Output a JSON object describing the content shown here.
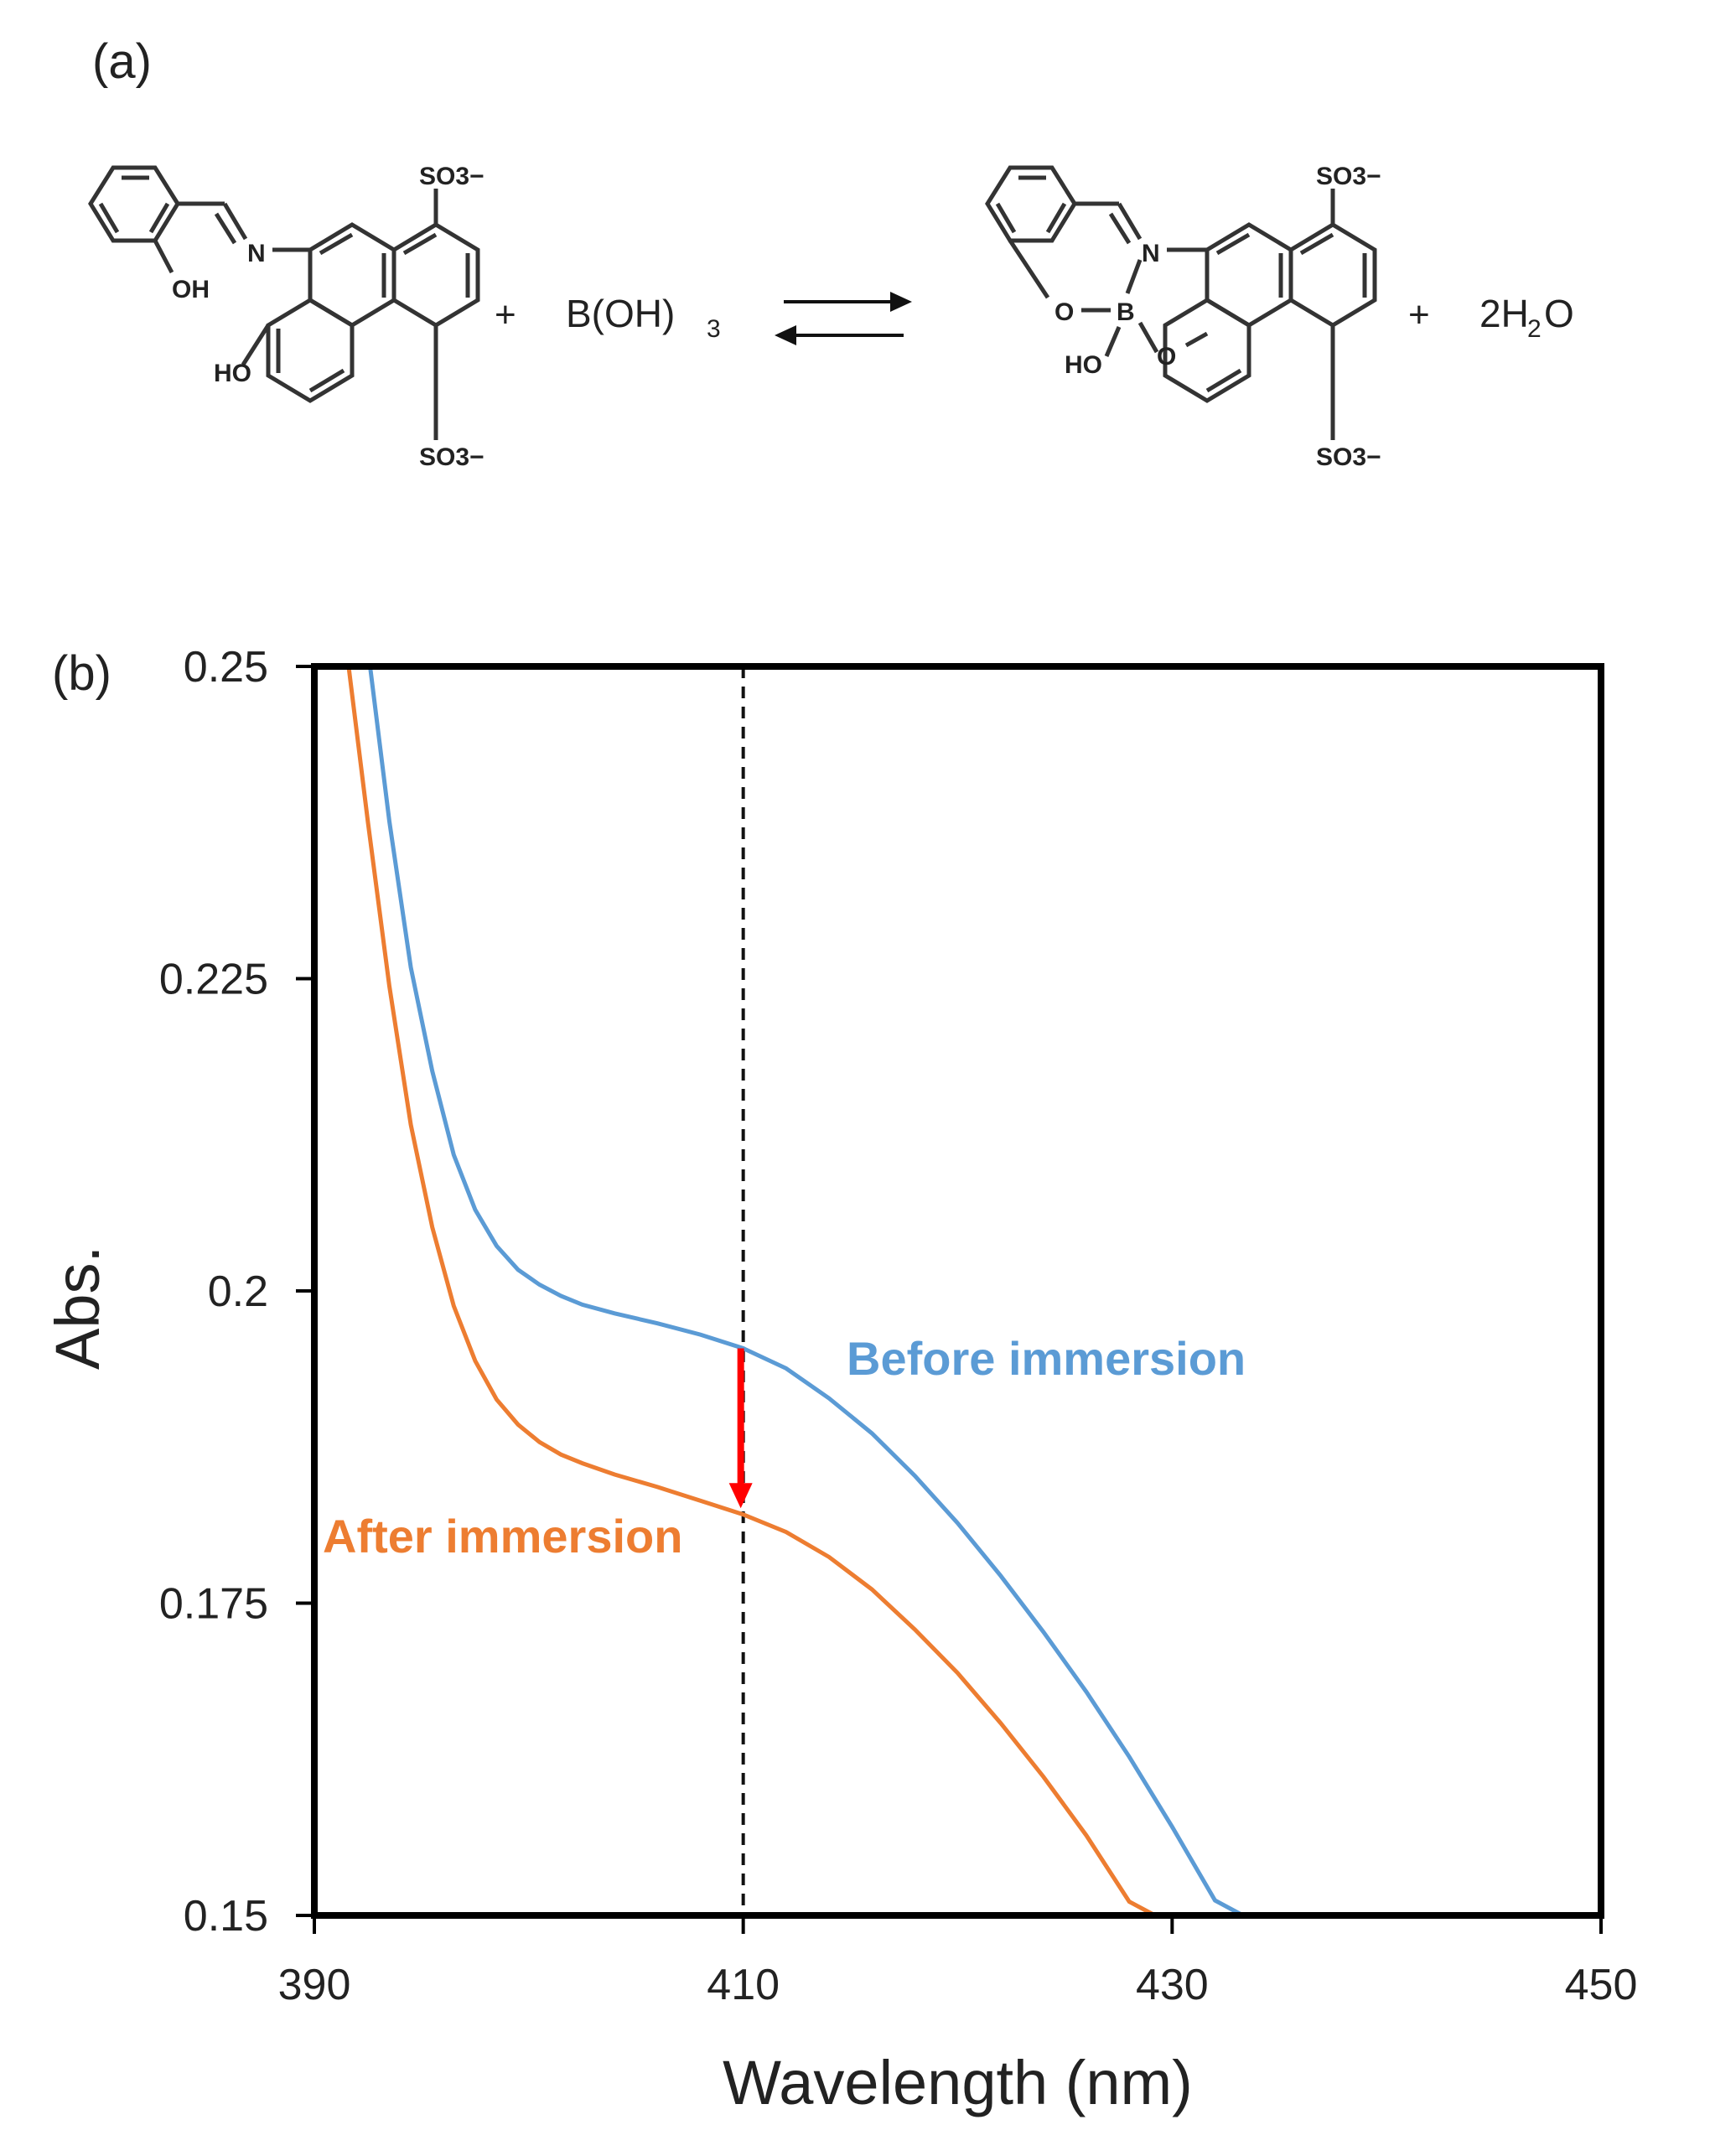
{
  "panels": {
    "a_label": "(a)",
    "b_label": "(b)"
  },
  "scheme": {
    "reactant_labels": {
      "n": "N",
      "oh": "OH",
      "ho": "HO",
      "so3_top": "SO3−",
      "so3_bottom": "SO3−"
    },
    "plus_1": "+",
    "reagent": "B(OH)",
    "reagent_sub": "3",
    "product_labels": {
      "n": "N",
      "b": "B",
      "o_left": "O",
      "o_right": "O",
      "ho": "HO",
      "so3_top": "SO3−",
      "so3_bottom": "SO3−"
    },
    "plus_2": "+",
    "water_prefix": "2H",
    "water_sub": "2",
    "water_suffix": "O"
  },
  "chart_data": {
    "type": "line",
    "xlabel": "Wavelength (nm)",
    "ylabel": "Abs.",
    "xlim": [
      390,
      450
    ],
    "ylim": [
      0.15,
      0.25
    ],
    "x_ticks": [
      "390",
      "410",
      "430",
      "450"
    ],
    "y_ticks": [
      "0.15",
      "0.175",
      "0.2",
      "0.225",
      "0.25"
    ],
    "grid": false,
    "series": [
      {
        "name": "Before immersion",
        "color": "#5b9bd5",
        "x": [
          392.6,
          393.5,
          394.5,
          395.5,
          396.5,
          397.5,
          398.5,
          399.5,
          400.5,
          401.5,
          402.5,
          404,
          406,
          408,
          410,
          412,
          414,
          416,
          418,
          420,
          422,
          424,
          426,
          428,
          430,
          432,
          433.3
        ],
        "y": [
          0.25,
          0.2376,
          0.2259,
          0.2176,
          0.2109,
          0.2065,
          0.2036,
          0.2017,
          0.2005,
          0.1996,
          0.1989,
          0.1982,
          0.1974,
          0.1965,
          0.1954,
          0.1938,
          0.1914,
          0.1886,
          0.1852,
          0.1814,
          0.1772,
          0.1727,
          0.1679,
          0.1627,
          0.1571,
          0.1512,
          0.15
        ]
      },
      {
        "name": "After immersion",
        "color": "#ed7d31",
        "x": [
          391.6,
          392.5,
          393.5,
          394.5,
          395.5,
          396.5,
          397.5,
          398.5,
          399.5,
          400.5,
          401.5,
          402.5,
          404,
          406,
          408,
          410,
          412,
          414,
          416,
          418,
          420,
          422,
          424,
          426,
          428,
          429.2
        ],
        "y": [
          0.25,
          0.2375,
          0.2244,
          0.2133,
          0.2051,
          0.1988,
          0.1944,
          0.1913,
          0.1893,
          0.1879,
          0.1869,
          0.1862,
          0.1853,
          0.1843,
          0.1832,
          0.1821,
          0.1807,
          0.1787,
          0.1761,
          0.1729,
          0.1694,
          0.1654,
          0.1611,
          0.1564,
          0.1511,
          0.15
        ]
      }
    ],
    "annotations": {
      "before_label": "Before immersion",
      "after_label": "After immersion",
      "marker_x": 410,
      "arrow_from": 0.1954,
      "arrow_to": 0.1826,
      "arrow_color": "#ff0000"
    }
  }
}
